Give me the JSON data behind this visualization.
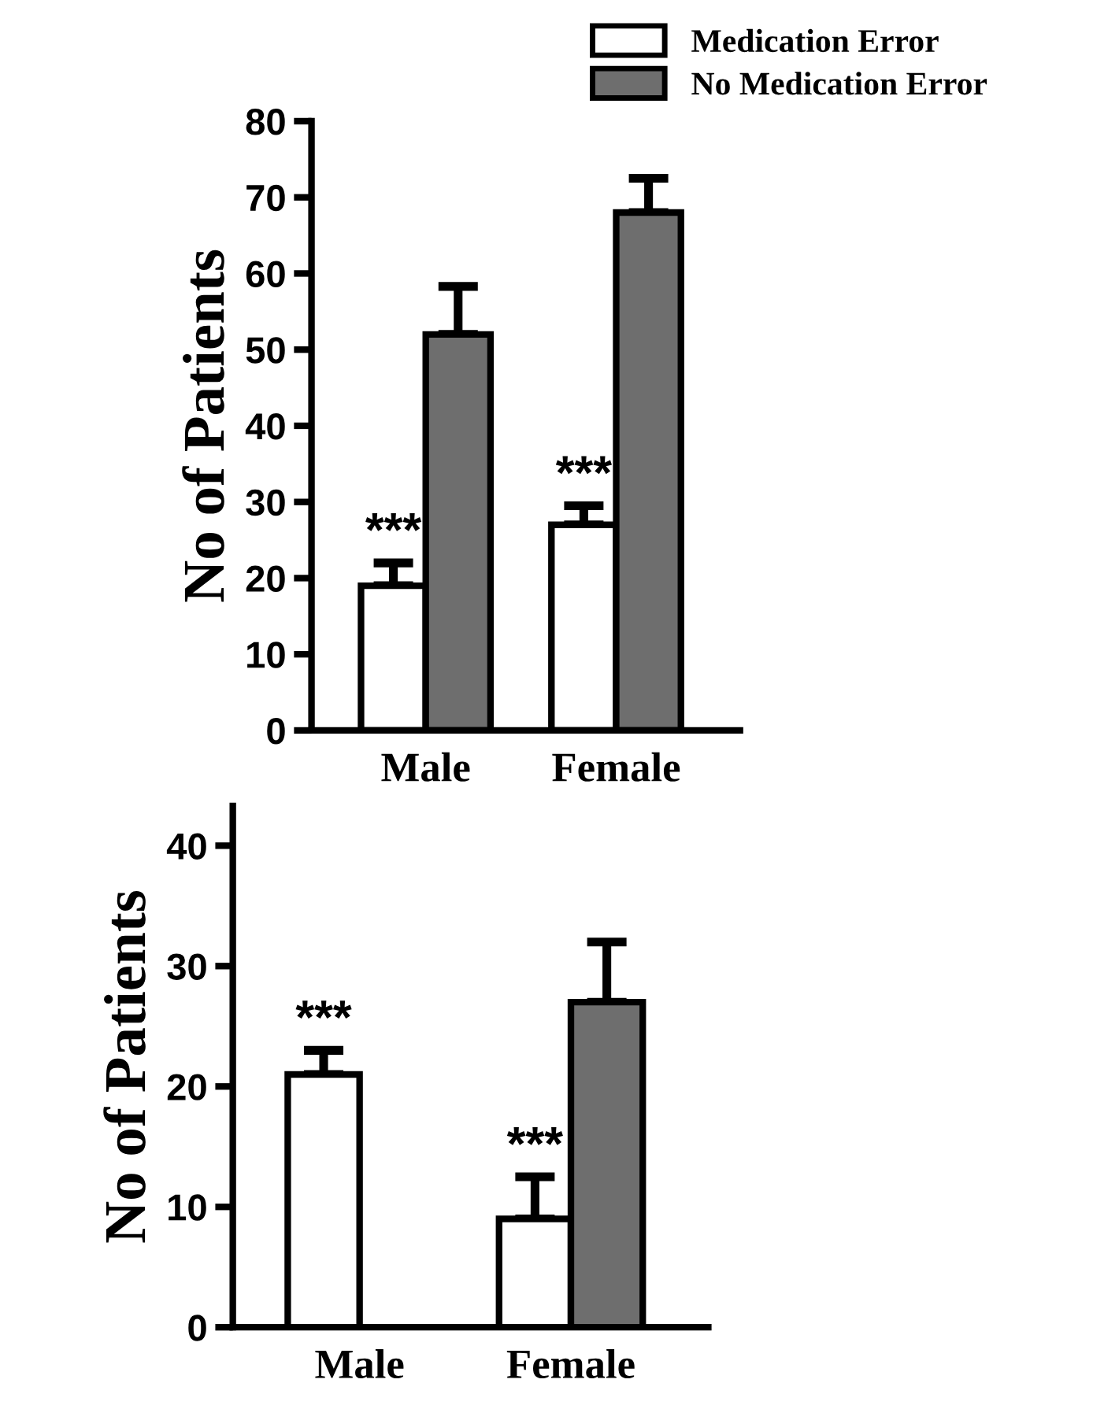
{
  "chart_data": [
    {
      "type": "bar",
      "ylabel": "No of Patients",
      "categories": [
        "Male",
        "Female"
      ],
      "ylim": [
        0,
        80
      ],
      "yticks": [
        0,
        10,
        20,
        30,
        40,
        50,
        60,
        70,
        80
      ],
      "grid": false,
      "legend": "top right",
      "series": [
        {
          "name": "Medication Error",
          "color": "#ffffff",
          "values": [
            19,
            27
          ],
          "errors": [
            [
              19,
              22
            ],
            [
              27,
              29.5
            ]
          ]
        },
        {
          "name": "No Medication Error",
          "color": "#6e6e6e",
          "values": [
            52,
            68
          ],
          "errors": [
            [
              52,
              58.3
            ],
            [
              68,
              72.5
            ]
          ]
        }
      ],
      "annotations": [
        "***",
        "***"
      ]
    },
    {
      "type": "bar",
      "ylabel": "No of Patients",
      "categories": [
        "Male",
        "Female"
      ],
      "ylim": [
        0,
        43.3
      ],
      "yticks": [
        0,
        10,
        20,
        30,
        40
      ],
      "grid": false,
      "legend": false,
      "series": [
        {
          "color": "#ffffff",
          "values": [
            21,
            9
          ],
          "errors": [
            [
              21,
              23
            ],
            [
              9,
              12.5
            ]
          ]
        },
        {
          "color": "#6e6e6e",
          "values": [
            null,
            27
          ],
          "errors": [
            null,
            [
              27,
              32
            ]
          ]
        }
      ],
      "annotations": [
        "***",
        "***"
      ]
    }
  ]
}
